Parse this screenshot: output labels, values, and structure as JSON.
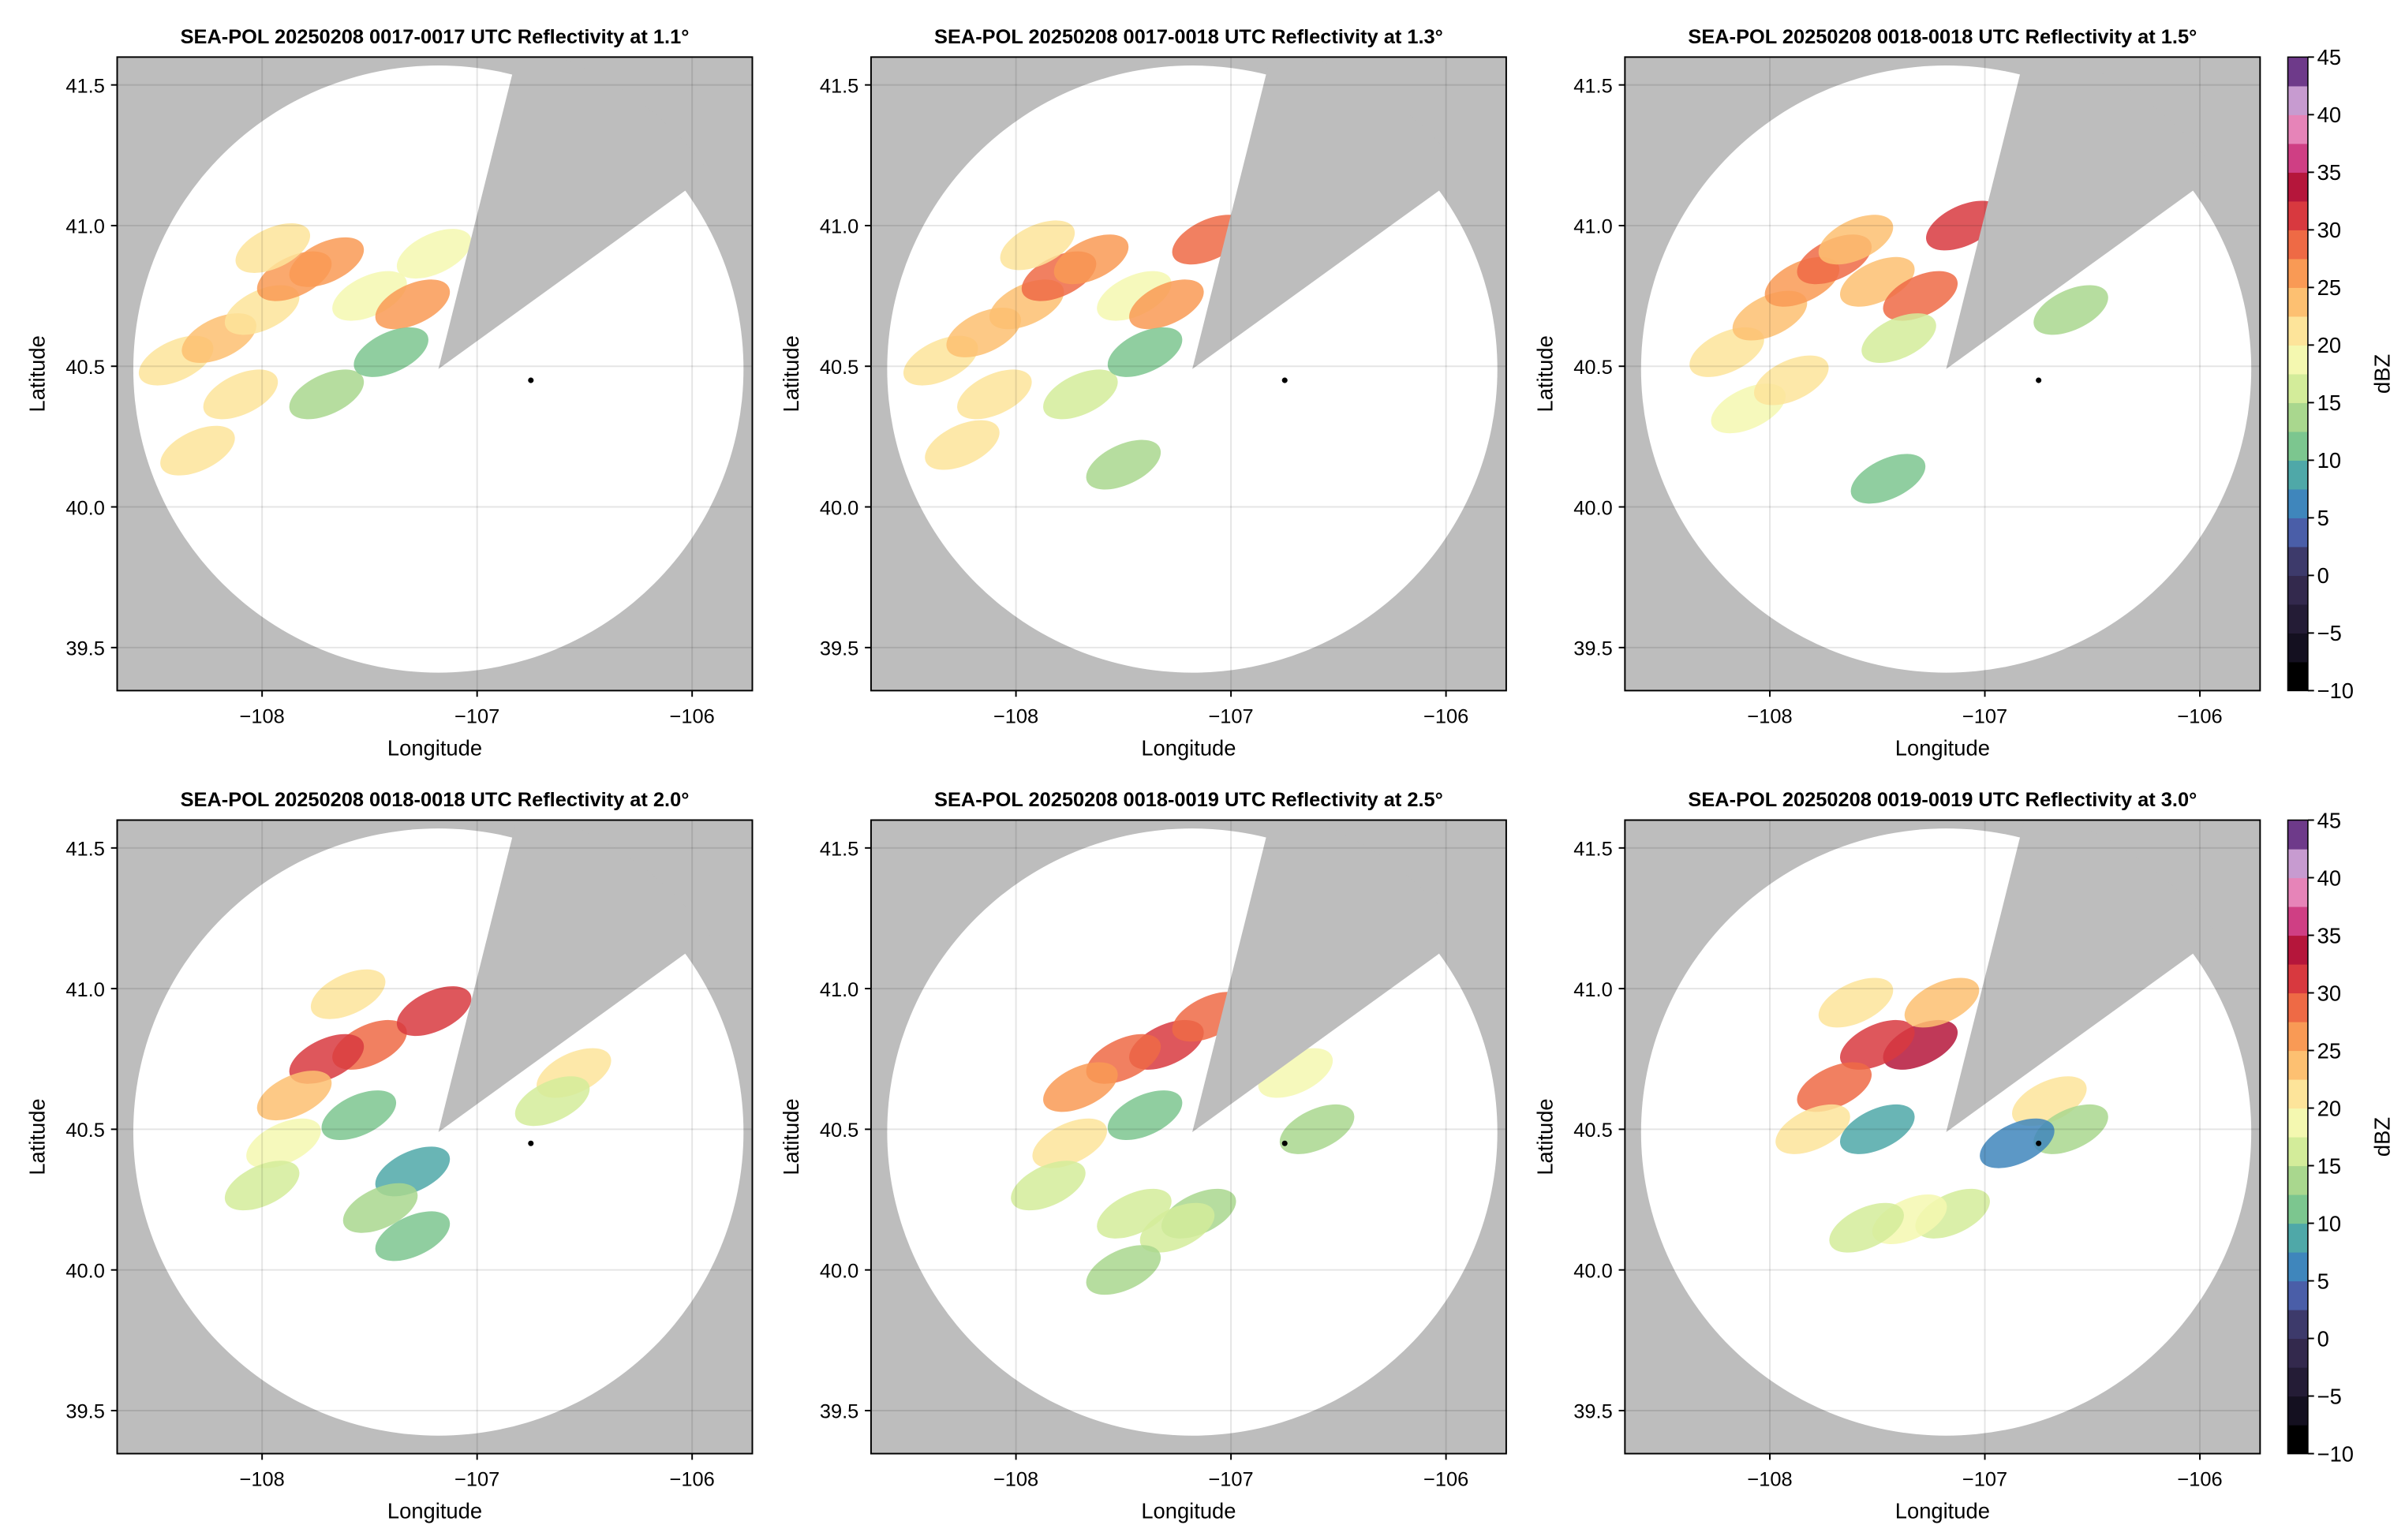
{
  "chart_data": [
    {
      "type": "radar_ppi",
      "title": "SEA-POL 20250208 0017-0017 UTC Reflectivity at 1.1°",
      "xlabel": "Longitude",
      "ylabel": "Latitude",
      "xlim": [
        -108.674,
        -105.72
      ],
      "ylim": [
        39.347,
        41.599
      ],
      "xticks": [
        {
          "value": -108,
          "label": "−108"
        },
        {
          "value": -107,
          "label": "−107"
        },
        {
          "value": -106,
          "label": "−106"
        }
      ],
      "yticks": [
        39.5,
        {
          "value": 40,
          "label": "40.0"
        },
        40.5,
        {
          "value": 41,
          "label": "41.0"
        },
        41.5
      ],
      "grid": true,
      "radar": {
        "lon": -107.18,
        "lat": 40.49,
        "range_km": 120
      },
      "blocked_azimuth": [
        14,
        54
      ],
      "marker": {
        "lon": -106.75,
        "lat": 40.45
      },
      "echoes": {
        "lon": [
          -108.4,
          -108.2,
          -108.0,
          -107.85,
          -107.7,
          -107.95,
          -107.5,
          -107.3,
          -107.2,
          -108.1,
          -107.7,
          -108.3,
          -107.4
        ],
        "lat": [
          40.52,
          40.6,
          40.7,
          40.82,
          40.87,
          40.92,
          40.75,
          40.72,
          40.9,
          40.4,
          40.4,
          40.2,
          40.55
        ],
        "dbz": [
          22,
          24,
          22,
          27,
          25,
          22,
          18,
          26,
          18,
          20,
          14,
          22,
          12
        ]
      }
    },
    {
      "type": "radar_ppi",
      "title": "SEA-POL 20250208 0017-0018 UTC Reflectivity at 1.3°",
      "xlabel": "Longitude",
      "ylabel": "Latitude",
      "xlim": [
        -108.674,
        -105.72
      ],
      "ylim": [
        39.347,
        41.599
      ],
      "xticks": [
        {
          "value": -108,
          "label": "−108"
        },
        {
          "value": -107,
          "label": "−107"
        },
        {
          "value": -106,
          "label": "−106"
        }
      ],
      "yticks": [
        39.5,
        {
          "value": 40,
          "label": "40.0"
        },
        40.5,
        {
          "value": 41,
          "label": "41.0"
        },
        41.5
      ],
      "grid": true,
      "radar": {
        "lon": -107.18,
        "lat": 40.49,
        "range_km": 120
      },
      "blocked_azimuth": [
        14,
        54
      ],
      "marker": {
        "lon": -106.75,
        "lat": 40.45
      },
      "echoes": {
        "lon": [
          -108.35,
          -108.15,
          -107.95,
          -107.8,
          -107.65,
          -107.9,
          -107.45,
          -107.3,
          -107.1,
          -108.1,
          -107.7,
          -108.25,
          -107.5,
          -107.4
        ],
        "lat": [
          40.52,
          40.62,
          40.72,
          40.82,
          40.88,
          40.93,
          40.75,
          40.72,
          40.95,
          40.4,
          40.4,
          40.22,
          40.15,
          40.55
        ],
        "dbz": [
          22,
          24,
          23,
          28,
          25,
          22,
          18,
          27,
          28,
          20,
          15,
          22,
          14,
          12
        ]
      }
    },
    {
      "type": "radar_ppi",
      "title": "SEA-POL 20250208 0018-0018 UTC Reflectivity at 1.5°",
      "xlabel": "Longitude",
      "ylabel": "Latitude",
      "xlim": [
        -108.674,
        -105.72
      ],
      "ylim": [
        39.347,
        41.599
      ],
      "xticks": [
        {
          "value": -108,
          "label": "−108"
        },
        {
          "value": -107,
          "label": "−107"
        },
        {
          "value": -106,
          "label": "−106"
        }
      ],
      "yticks": [
        39.5,
        {
          "value": 40,
          "label": "40.0"
        },
        40.5,
        {
          "value": 41,
          "label": "41.0"
        },
        41.5
      ],
      "grid": true,
      "radar": {
        "lon": -107.18,
        "lat": 40.49,
        "range_km": 120
      },
      "blocked_azimuth": [
        14,
        54
      ],
      "marker": {
        "lon": -106.75,
        "lat": 40.45
      },
      "echoes": {
        "lon": [
          -108.2,
          -108.0,
          -107.85,
          -107.7,
          -107.5,
          -107.3,
          -107.1,
          -107.4,
          -106.6,
          -107.45,
          -108.1,
          -107.9,
          -107.6
        ],
        "lat": [
          40.55,
          40.68,
          40.8,
          40.88,
          40.8,
          40.75,
          41.0,
          40.6,
          40.7,
          40.1,
          40.35,
          40.45,
          40.95
        ],
        "dbz": [
          20,
          23,
          27,
          28,
          24,
          28,
          32,
          16,
          14,
          12,
          18,
          20,
          24
        ]
      }
    },
    {
      "type": "radar_ppi",
      "title": "SEA-POL 20250208 0018-0018 UTC Reflectivity at 2.0°",
      "xlabel": "Longitude",
      "ylabel": "Latitude",
      "xlim": [
        -108.674,
        -105.72
      ],
      "ylim": [
        39.347,
        41.599
      ],
      "xticks": [
        {
          "value": -108,
          "label": "−108"
        },
        {
          "value": -107,
          "label": "−107"
        },
        {
          "value": -106,
          "label": "−106"
        }
      ],
      "yticks": [
        39.5,
        {
          "value": 40,
          "label": "40.0"
        },
        40.5,
        {
          "value": 41,
          "label": "41.0"
        },
        41.5
      ],
      "grid": true,
      "radar": {
        "lon": -107.18,
        "lat": 40.49,
        "range_km": 120
      },
      "blocked_azimuth": [
        14,
        54
      ],
      "marker": {
        "lon": -106.75,
        "lat": 40.45
      },
      "echoes": {
        "lon": [
          -107.5,
          -107.2,
          -107.7,
          -107.85,
          -107.55,
          -107.3,
          -107.45,
          -107.3,
          -106.55,
          -106.65,
          -107.9,
          -108.0,
          -107.6
        ],
        "lat": [
          40.8,
          40.92,
          40.75,
          40.62,
          40.55,
          40.35,
          40.22,
          40.12,
          40.7,
          40.6,
          40.45,
          40.3,
          40.98
        ],
        "dbz": [
          28,
          32,
          30,
          24,
          10,
          8,
          14,
          12,
          22,
          16,
          18,
          16,
          20
        ]
      }
    },
    {
      "type": "radar_ppi",
      "title": "SEA-POL 20250208 0018-0019 UTC Reflectivity at 2.5°",
      "xlabel": "Longitude",
      "ylabel": "Latitude",
      "xlim": [
        -108.674,
        -105.72
      ],
      "ylim": [
        39.347,
        41.599
      ],
      "xticks": [
        {
          "value": -108,
          "label": "−108"
        },
        {
          "value": -107,
          "label": "−107"
        },
        {
          "value": -106,
          "label": "−106"
        }
      ],
      "yticks": [
        39.5,
        {
          "value": 40,
          "label": "40.0"
        },
        40.5,
        {
          "value": 41,
          "label": "41.0"
        },
        41.5
      ],
      "grid": true,
      "radar": {
        "lon": -107.18,
        "lat": 40.49,
        "range_km": 120
      },
      "blocked_azimuth": [
        14,
        54
      ],
      "marker": {
        "lon": -106.75,
        "lat": 40.45
      },
      "echoes": {
        "lon": [
          -107.3,
          -107.5,
          -107.7,
          -107.1,
          -106.7,
          -106.6,
          -107.15,
          -107.25,
          -107.45,
          -107.75,
          -107.85,
          -107.4,
          -107.5
        ],
        "lat": [
          40.8,
          40.75,
          40.65,
          40.9,
          40.7,
          40.5,
          40.2,
          40.15,
          40.2,
          40.45,
          40.3,
          40.55,
          40.0
        ],
        "dbz": [
          30,
          28,
          26,
          28,
          18,
          14,
          14,
          15,
          16,
          20,
          16,
          10,
          14
        ]
      }
    },
    {
      "type": "radar_ppi",
      "title": "SEA-POL 20250208 0019-0019 UTC Reflectivity at 3.0°",
      "xlabel": "Longitude",
      "ylabel": "Latitude",
      "xlim": [
        -108.674,
        -105.72
      ],
      "ylim": [
        39.347,
        41.599
      ],
      "xticks": [
        {
          "value": -108,
          "label": "−108"
        },
        {
          "value": -107,
          "label": "−107"
        },
        {
          "value": -106,
          "label": "−106"
        }
      ],
      "yticks": [
        39.5,
        {
          "value": 40,
          "label": "40.0"
        },
        40.5,
        {
          "value": 41,
          "label": "41.0"
        },
        41.5
      ],
      "grid": true,
      "radar": {
        "lon": -107.18,
        "lat": 40.49,
        "range_km": 120
      },
      "blocked_azimuth": [
        14,
        54
      ],
      "marker": {
        "lon": -106.75,
        "lat": 40.45
      },
      "echoes": {
        "lon": [
          -107.3,
          -107.5,
          -107.7,
          -107.2,
          -106.7,
          -106.6,
          -107.15,
          -107.35,
          -107.55,
          -107.8,
          -107.5,
          -106.85,
          -107.6
        ],
        "lat": [
          40.8,
          40.8,
          40.65,
          40.95,
          40.6,
          40.5,
          40.2,
          40.18,
          40.15,
          40.5,
          40.5,
          40.45,
          40.95
        ],
        "dbz": [
          33,
          30,
          28,
          24,
          20,
          14,
          16,
          18,
          15,
          22,
          8,
          6,
          20
        ]
      }
    }
  ],
  "colorbar": {
    "label": "dBZ",
    "clim": [
      -10,
      45
    ],
    "ticks": [
      {
        "value": -10,
        "label": "−10"
      },
      {
        "value": -5,
        "label": "−5"
      },
      0,
      5,
      10,
      15,
      20,
      25,
      30,
      35,
      40,
      45
    ],
    "colors": [
      "#000000",
      "#141020",
      "#241c36",
      "#33294d",
      "#3d3a6b",
      "#4a5ea8",
      "#3f86bc",
      "#4fa8a8",
      "#7cc68f",
      "#a9d78e",
      "#d3ec9a",
      "#f4f8b0",
      "#fde49a",
      "#fdc071",
      "#f99a55",
      "#ee6a45",
      "#d8393f",
      "#b5163b",
      "#cf3f84",
      "#e684b8",
      "#c79bd0",
      "#6e3a8a"
    ]
  }
}
